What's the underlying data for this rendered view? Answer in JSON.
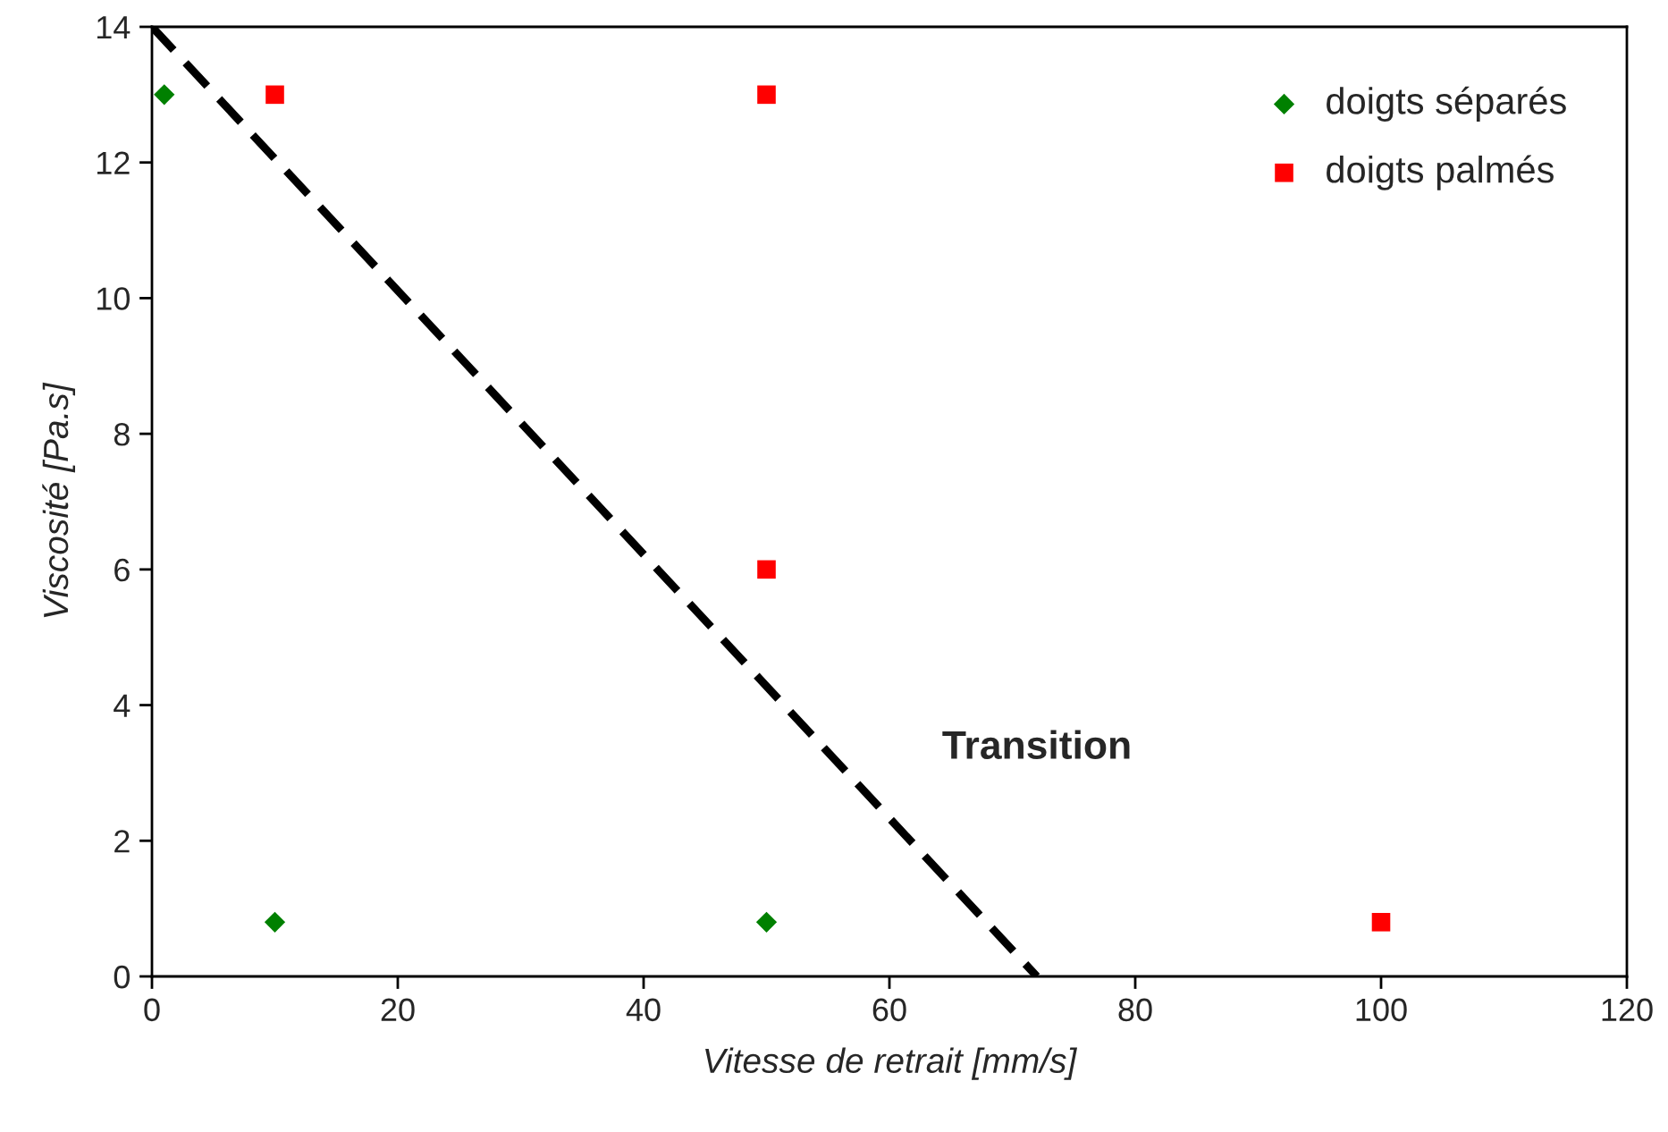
{
  "chart_data": {
    "type": "scatter",
    "xlabel": "Vitesse de retrait [mm/s]",
    "ylabel": "Viscosité [Pa.s]",
    "xlim": [
      0,
      120
    ],
    "ylim": [
      0,
      14
    ],
    "xticks": [
      0,
      20,
      40,
      60,
      80,
      100,
      120
    ],
    "yticks": [
      0,
      2,
      4,
      6,
      8,
      10,
      12,
      14
    ],
    "grid": false,
    "legend": "top right",
    "series": [
      {
        "name": "doigts séparés",
        "color": "#008000",
        "marker": "diamond",
        "x": [
          1,
          10,
          50
        ],
        "values": [
          13,
          0.8,
          0.8
        ]
      },
      {
        "name": "doigts palmés",
        "color": "#ff0000",
        "marker": "square",
        "x": [
          10,
          50,
          50,
          100
        ],
        "values": [
          13,
          13,
          6,
          0.8
        ]
      },
      {
        "type": "line",
        "color": "#000000",
        "line_style": "dashed",
        "marker": "none",
        "x": [
          0,
          72
        ],
        "values": [
          14,
          0
        ]
      }
    ],
    "annotations": [
      "Transition"
    ]
  }
}
